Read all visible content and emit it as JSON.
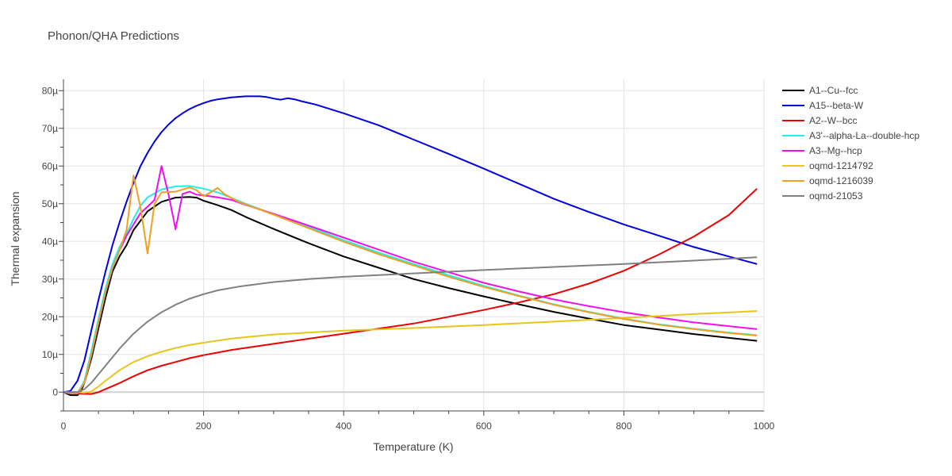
{
  "chart_data": {
    "type": "line",
    "title": "Phonon/QHA Predictions",
    "xlabel": "Temperature (K)",
    "ylabel": "Thermal expansion",
    "xlim": [
      0,
      1000
    ],
    "ylim": [
      -5,
      83
    ],
    "grid": true,
    "legend_position": "top-right",
    "x_ticks": [
      0,
      200,
      400,
      600,
      800,
      1000
    ],
    "x_tick_labels": [
      "0",
      "200",
      "400",
      "600",
      "800",
      "1000"
    ],
    "y_ticks": [
      0,
      10,
      20,
      30,
      40,
      50,
      60,
      70,
      80
    ],
    "y_tick_labels": [
      "0",
      "10µ",
      "20µ",
      "30µ",
      "40µ",
      "50µ",
      "60µ",
      "70µ",
      "80µ"
    ],
    "series": [
      {
        "name": "A1--Cu--fcc",
        "color": "#000000",
        "points": [
          [
            0,
            0
          ],
          [
            10,
            -0.8
          ],
          [
            20,
            -0.8
          ],
          [
            25,
            0.3
          ],
          [
            30,
            2.5
          ],
          [
            40,
            9
          ],
          [
            50,
            17
          ],
          [
            60,
            25
          ],
          [
            70,
            32
          ],
          [
            80,
            36
          ],
          [
            90,
            39
          ],
          [
            100,
            43
          ],
          [
            120,
            48
          ],
          [
            140,
            50.5
          ],
          [
            160,
            51.6
          ],
          [
            180,
            51.8
          ],
          [
            190,
            51.6
          ],
          [
            200,
            50.8
          ],
          [
            220,
            49.6
          ],
          [
            240,
            48.3
          ],
          [
            260,
            46.5
          ],
          [
            300,
            43.3
          ],
          [
            350,
            39.5
          ],
          [
            400,
            36
          ],
          [
            450,
            33
          ],
          [
            500,
            30
          ],
          [
            550,
            27.6
          ],
          [
            600,
            25.4
          ],
          [
            650,
            23.3
          ],
          [
            700,
            21.3
          ],
          [
            750,
            19.5
          ],
          [
            800,
            17.8
          ],
          [
            850,
            16.6
          ],
          [
            900,
            15.4
          ],
          [
            950,
            14.4
          ],
          [
            990,
            13.6
          ]
        ]
      },
      {
        "name": "A15--beta-W",
        "color": "#0000dd",
        "points": [
          [
            0,
            0
          ],
          [
            10,
            0.3
          ],
          [
            20,
            3
          ],
          [
            30,
            8.5
          ],
          [
            40,
            16.5
          ],
          [
            50,
            24.5
          ],
          [
            60,
            32
          ],
          [
            70,
            39
          ],
          [
            80,
            45
          ],
          [
            90,
            50.5
          ],
          [
            100,
            55.5
          ],
          [
            110,
            60
          ],
          [
            120,
            63.5
          ],
          [
            130,
            66.5
          ],
          [
            140,
            69
          ],
          [
            150,
            71
          ],
          [
            160,
            72.7
          ],
          [
            170,
            74
          ],
          [
            180,
            75.1
          ],
          [
            190,
            76
          ],
          [
            200,
            76.7
          ],
          [
            210,
            77.3
          ],
          [
            220,
            77.7
          ],
          [
            240,
            78.2
          ],
          [
            260,
            78.5
          ],
          [
            280,
            78.5
          ],
          [
            290,
            78.3
          ],
          [
            300,
            77.9
          ],
          [
            310,
            77.6
          ],
          [
            320,
            78
          ],
          [
            330,
            77.7
          ],
          [
            340,
            77.2
          ],
          [
            360,
            76.3
          ],
          [
            400,
            74
          ],
          [
            450,
            70.8
          ],
          [
            500,
            67
          ],
          [
            550,
            63.2
          ],
          [
            600,
            59.3
          ],
          [
            650,
            55.3
          ],
          [
            700,
            51.3
          ],
          [
            750,
            47.8
          ],
          [
            800,
            44.5
          ],
          [
            850,
            41.5
          ],
          [
            900,
            38.5
          ],
          [
            950,
            36
          ],
          [
            990,
            34
          ]
        ]
      },
      {
        "name": "A2--W--bcc",
        "color": "#ee0000",
        "points": [
          [
            0,
            0
          ],
          [
            20,
            -0.4
          ],
          [
            40,
            -0.5
          ],
          [
            50,
            0
          ],
          [
            60,
            0.8
          ],
          [
            80,
            2.4
          ],
          [
            100,
            4.2
          ],
          [
            120,
            5.8
          ],
          [
            140,
            7
          ],
          [
            160,
            8
          ],
          [
            180,
            9
          ],
          [
            200,
            9.8
          ],
          [
            240,
            11.2
          ],
          [
            300,
            12.8
          ],
          [
            400,
            15.5
          ],
          [
            500,
            18.2
          ],
          [
            550,
            20
          ],
          [
            600,
            21.8
          ],
          [
            650,
            23.8
          ],
          [
            700,
            26
          ],
          [
            750,
            28.8
          ],
          [
            800,
            32.2
          ],
          [
            850,
            36.5
          ],
          [
            900,
            41.3
          ],
          [
            950,
            47
          ],
          [
            990,
            54
          ]
        ]
      },
      {
        "name": "A3'--alpha-La--double-hcp",
        "color": "#22eeee",
        "points": [
          [
            0,
            0
          ],
          [
            10,
            -0.3
          ],
          [
            20,
            -0.3
          ],
          [
            30,
            3
          ],
          [
            40,
            11
          ],
          [
            50,
            19.5
          ],
          [
            60,
            27.5
          ],
          [
            70,
            34
          ],
          [
            80,
            38.5
          ],
          [
            90,
            42
          ],
          [
            100,
            46
          ],
          [
            110,
            49.5
          ],
          [
            120,
            51.7
          ],
          [
            140,
            53.8
          ],
          [
            160,
            54.6
          ],
          [
            180,
            54.7
          ],
          [
            200,
            54
          ],
          [
            220,
            53
          ],
          [
            240,
            51.5
          ],
          [
            260,
            50
          ],
          [
            300,
            47.2
          ],
          [
            350,
            43.9
          ],
          [
            400,
            40.3
          ],
          [
            450,
            37
          ],
          [
            500,
            34
          ],
          [
            550,
            31
          ],
          [
            600,
            28.2
          ],
          [
            650,
            25.6
          ],
          [
            700,
            23.3
          ],
          [
            750,
            21.3
          ],
          [
            800,
            19.5
          ],
          [
            850,
            18
          ],
          [
            900,
            16.8
          ],
          [
            950,
            15.8
          ],
          [
            990,
            15.1
          ]
        ]
      },
      {
        "name": "A3--Mg--hcp",
        "color": "#ee11ee",
        "points": [
          [
            0,
            0
          ],
          [
            10,
            -0.3
          ],
          [
            20,
            -0.3
          ],
          [
            30,
            2.5
          ],
          [
            40,
            10
          ],
          [
            50,
            18.5
          ],
          [
            60,
            26.5
          ],
          [
            70,
            33
          ],
          [
            80,
            37.5
          ],
          [
            90,
            41.5
          ],
          [
            100,
            44.5
          ],
          [
            110,
            47.5
          ],
          [
            120,
            49.2
          ],
          [
            130,
            51
          ],
          [
            140,
            60
          ],
          [
            150,
            52.5
          ],
          [
            160,
            43.2
          ],
          [
            170,
            52.6
          ],
          [
            180,
            53.2
          ],
          [
            190,
            52.4
          ],
          [
            200,
            52.2
          ],
          [
            220,
            51.7
          ],
          [
            240,
            51
          ],
          [
            260,
            49.7
          ],
          [
            300,
            47.3
          ],
          [
            350,
            44.2
          ],
          [
            400,
            41
          ],
          [
            450,
            37.8
          ],
          [
            500,
            34.6
          ],
          [
            550,
            31.8
          ],
          [
            600,
            29
          ],
          [
            650,
            26.7
          ],
          [
            700,
            24.6
          ],
          [
            750,
            22.8
          ],
          [
            800,
            21.2
          ],
          [
            850,
            19.8
          ],
          [
            900,
            18.5
          ],
          [
            950,
            17.5
          ],
          [
            990,
            16.7
          ]
        ]
      },
      {
        "name": "oqmd-1214792",
        "color": "#e6c619",
        "points": [
          [
            0,
            0
          ],
          [
            20,
            0
          ],
          [
            30,
            -0.2
          ],
          [
            40,
            0.2
          ],
          [
            50,
            1.5
          ],
          [
            60,
            3
          ],
          [
            80,
            5.8
          ],
          [
            100,
            8
          ],
          [
            120,
            9.5
          ],
          [
            140,
            10.7
          ],
          [
            160,
            11.7
          ],
          [
            180,
            12.5
          ],
          [
            200,
            13.1
          ],
          [
            240,
            14.2
          ],
          [
            300,
            15.3
          ],
          [
            400,
            16.3
          ],
          [
            500,
            17
          ],
          [
            600,
            17.8
          ],
          [
            700,
            18.7
          ],
          [
            800,
            19.7
          ],
          [
            900,
            20.7
          ],
          [
            990,
            21.5
          ]
        ]
      },
      {
        "name": "oqmd-1216039",
        "color": "#f0a020",
        "points": [
          [
            0,
            0
          ],
          [
            10,
            -0.3
          ],
          [
            20,
            -0.3
          ],
          [
            30,
            2.5
          ],
          [
            40,
            10
          ],
          [
            50,
            18.5
          ],
          [
            60,
            26.5
          ],
          [
            70,
            33
          ],
          [
            80,
            37.5
          ],
          [
            90,
            43
          ],
          [
            100,
            57.5
          ],
          [
            110,
            49
          ],
          [
            120,
            36.8
          ],
          [
            130,
            50
          ],
          [
            140,
            53
          ],
          [
            160,
            53.2
          ],
          [
            180,
            54.3
          ],
          [
            190,
            53.6
          ],
          [
            200,
            52
          ],
          [
            210,
            53
          ],
          [
            220,
            54.2
          ],
          [
            230,
            52.5
          ],
          [
            250,
            50.5
          ],
          [
            300,
            47.1
          ],
          [
            350,
            43.5
          ],
          [
            400,
            39.9
          ],
          [
            450,
            36.6
          ],
          [
            500,
            33.6
          ],
          [
            550,
            30.6
          ],
          [
            600,
            27.9
          ],
          [
            650,
            25.5
          ],
          [
            700,
            23.2
          ],
          [
            750,
            21.2
          ],
          [
            800,
            19.4
          ],
          [
            850,
            17.9
          ],
          [
            900,
            16.7
          ],
          [
            950,
            15.7
          ],
          [
            990,
            15
          ]
        ]
      },
      {
        "name": "oqmd-21053",
        "color": "#808080",
        "points": [
          [
            0,
            0
          ],
          [
            20,
            0
          ],
          [
            30,
            0.8
          ],
          [
            40,
            2.5
          ],
          [
            60,
            7
          ],
          [
            80,
            11.5
          ],
          [
            100,
            15.5
          ],
          [
            120,
            18.7
          ],
          [
            140,
            21.2
          ],
          [
            160,
            23.2
          ],
          [
            180,
            24.8
          ],
          [
            200,
            26
          ],
          [
            220,
            27
          ],
          [
            250,
            28
          ],
          [
            300,
            29.2
          ],
          [
            350,
            30
          ],
          [
            400,
            30.6
          ],
          [
            500,
            31.5
          ],
          [
            600,
            32.4
          ],
          [
            700,
            33.2
          ],
          [
            800,
            34
          ],
          [
            900,
            34.9
          ],
          [
            990,
            35.8
          ]
        ]
      }
    ]
  }
}
